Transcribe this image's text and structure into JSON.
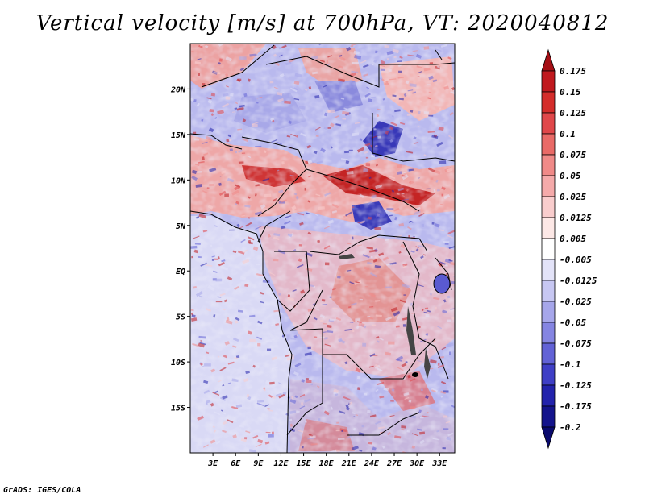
{
  "title": "Vertical velocity [m/s] at 700hPa, VT: 2020040812",
  "credit": "GrADS: IGES/COLA",
  "chart_data": {
    "type": "heatmap",
    "title": "Vertical velocity [m/s] at 700hPa, VT: 2020040812",
    "variable": "Vertical velocity",
    "units": "m/s",
    "level": "700hPa",
    "valid_time": "2020040812",
    "lon_range": [
      0,
      35
    ],
    "lat_range": [
      -20,
      25
    ],
    "x_ticks": [
      {
        "label": "3E",
        "value": 3
      },
      {
        "label": "6E",
        "value": 6
      },
      {
        "label": "9E",
        "value": 9
      },
      {
        "label": "12E",
        "value": 12
      },
      {
        "label": "15E",
        "value": 15
      },
      {
        "label": "18E",
        "value": 18
      },
      {
        "label": "21E",
        "value": 21
      },
      {
        "label": "24E",
        "value": 24
      },
      {
        "label": "27E",
        "value": 27
      },
      {
        "label": "30E",
        "value": 30
      },
      {
        "label": "33E",
        "value": 33
      }
    ],
    "y_ticks": [
      {
        "label": "20N",
        "value": 20
      },
      {
        "label": "15N",
        "value": 15
      },
      {
        "label": "10N",
        "value": 10
      },
      {
        "label": "5N",
        "value": 5
      },
      {
        "label": "EQ",
        "value": 0
      },
      {
        "label": "5S",
        "value": -5
      },
      {
        "label": "10S",
        "value": -10
      },
      {
        "label": "15S",
        "value": -15
      }
    ],
    "colorbar": {
      "levels": [
        "0.175",
        "0.15",
        "0.125",
        "0.1",
        "0.075",
        "0.05",
        "0.025",
        "0.0125",
        "0.005",
        "-0.005",
        "-0.0125",
        "-0.025",
        "-0.05",
        "-0.075",
        "-0.1",
        "-0.125",
        "-0.175",
        "-0.2"
      ],
      "colors": [
        "#a50f15",
        "#c0191e",
        "#d42d2b",
        "#e0474a",
        "#e96a67",
        "#f08a88",
        "#f5aaaa",
        "#f9cdcd",
        "#fde8e6",
        "#ffffff",
        "#e3e3f8",
        "#c7c7f2",
        "#a6a6ea",
        "#8585e2",
        "#6262d6",
        "#3f3fc6",
        "#2323ac",
        "#14148c",
        "#0a0a6e"
      ]
    }
  }
}
